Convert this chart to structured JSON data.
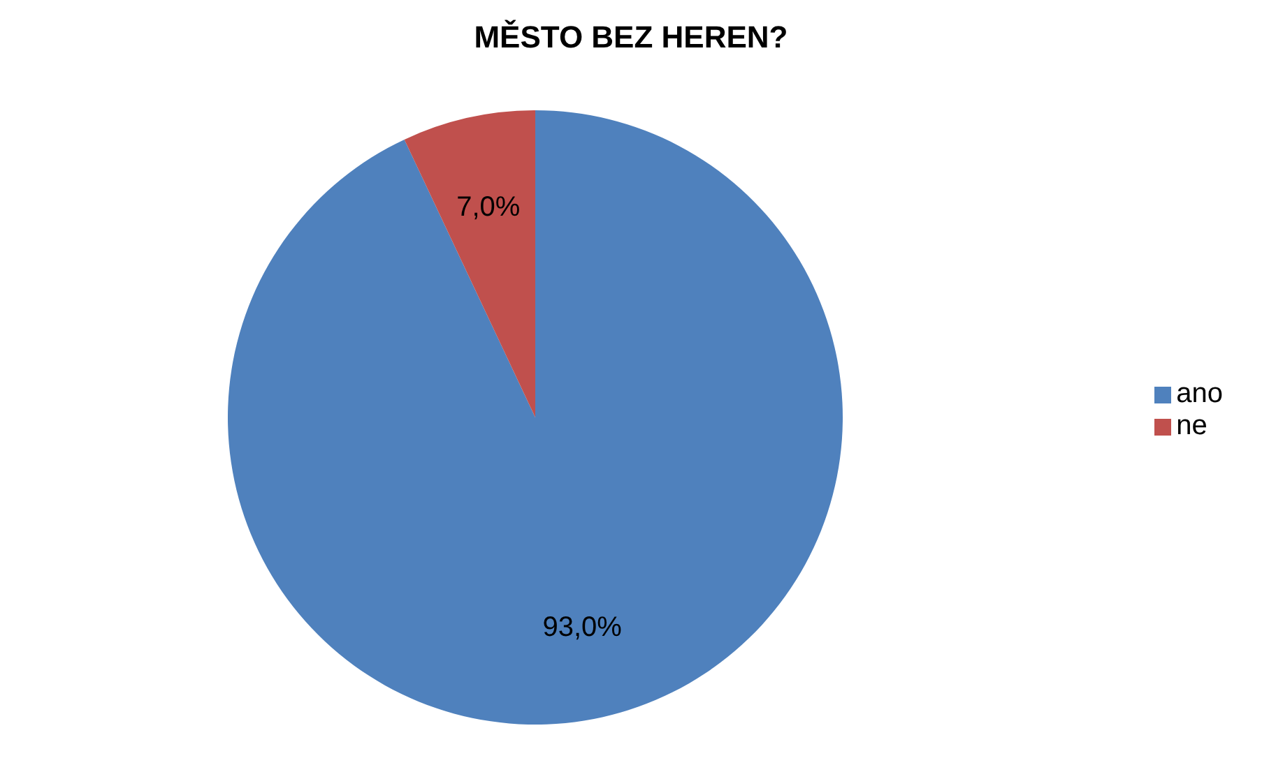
{
  "chart_data": {
    "type": "pie",
    "title": "MĚSTO BEZ HEREN?",
    "categories": [
      "ano",
      "ne"
    ],
    "values": [
      93,
      7
    ],
    "colors": [
      "#4f81bd",
      "#c0504d"
    ],
    "value_labels": [
      "93,0%",
      "7,0%"
    ],
    "legend": "right"
  }
}
